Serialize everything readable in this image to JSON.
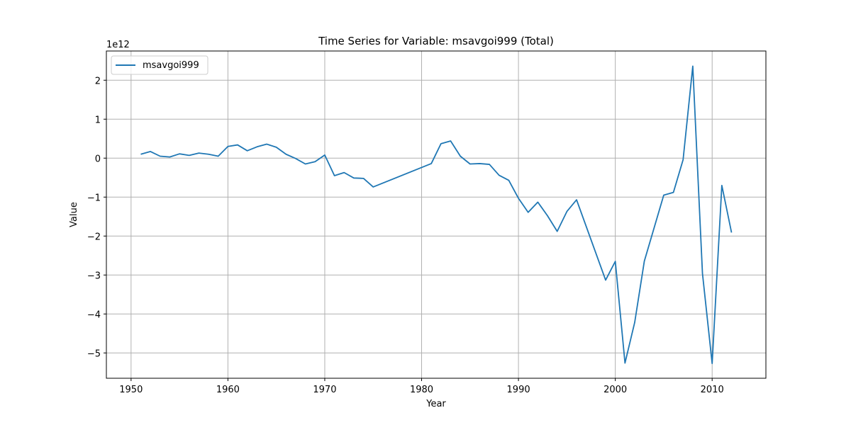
{
  "chart_data": {
    "type": "line",
    "title": "Time Series for Variable: msavgoi999 (Total)",
    "xlabel": "Year",
    "ylabel": "Value",
    "offset_label": "1e12",
    "xlim": [
      1947.45,
      2015.55
    ],
    "ylim": [
      -5.65,
      2.75
    ],
    "xticks": [
      1950,
      1960,
      1970,
      1980,
      1990,
      2000,
      2010
    ],
    "yticks": [
      -5,
      -4,
      -3,
      -2,
      -1,
      0,
      1,
      2
    ],
    "ytick_labels": [
      "−5",
      "−4",
      "−3",
      "−2",
      "−1",
      "0",
      "1",
      "2"
    ],
    "grid": true,
    "legend_position": "upper left",
    "line_color": "#1f77b4",
    "series": [
      {
        "name": "msavgoi999",
        "x": [
          1951,
          1952,
          1953,
          1954,
          1955,
          1956,
          1957,
          1958,
          1959,
          1960,
          1961,
          1962,
          1963,
          1964,
          1965,
          1966,
          1967,
          1968,
          1969,
          1970,
          1971,
          1972,
          1973,
          1974,
          1975,
          1981,
          1982,
          1983,
          1984,
          1985,
          1986,
          1987,
          1988,
          1989,
          1990,
          1991,
          1992,
          1993,
          1994,
          1995,
          1996,
          1999,
          2000,
          2001,
          2002,
          2003,
          2005,
          2006,
          2007,
          2008,
          2009,
          2010,
          2011,
          2012
        ],
        "y": [
          0.1,
          0.17,
          0.05,
          0.03,
          0.11,
          0.07,
          0.13,
          0.1,
          0.05,
          0.3,
          0.34,
          0.19,
          0.29,
          0.36,
          0.28,
          0.1,
          -0.01,
          -0.15,
          -0.09,
          0.08,
          -0.45,
          -0.37,
          -0.51,
          -0.52,
          -0.74,
          -0.14,
          0.37,
          0.44,
          0.05,
          -0.15,
          -0.14,
          -0.16,
          -0.44,
          -0.57,
          -1.03,
          -1.39,
          -1.13,
          -1.48,
          -1.88,
          -1.37,
          -1.07,
          -3.13,
          -2.65,
          -5.26,
          -4.22,
          -2.64,
          -0.95,
          -0.88,
          -0.04,
          2.36,
          -2.96,
          -5.27,
          -0.7,
          -1.91
        ]
      }
    ]
  }
}
